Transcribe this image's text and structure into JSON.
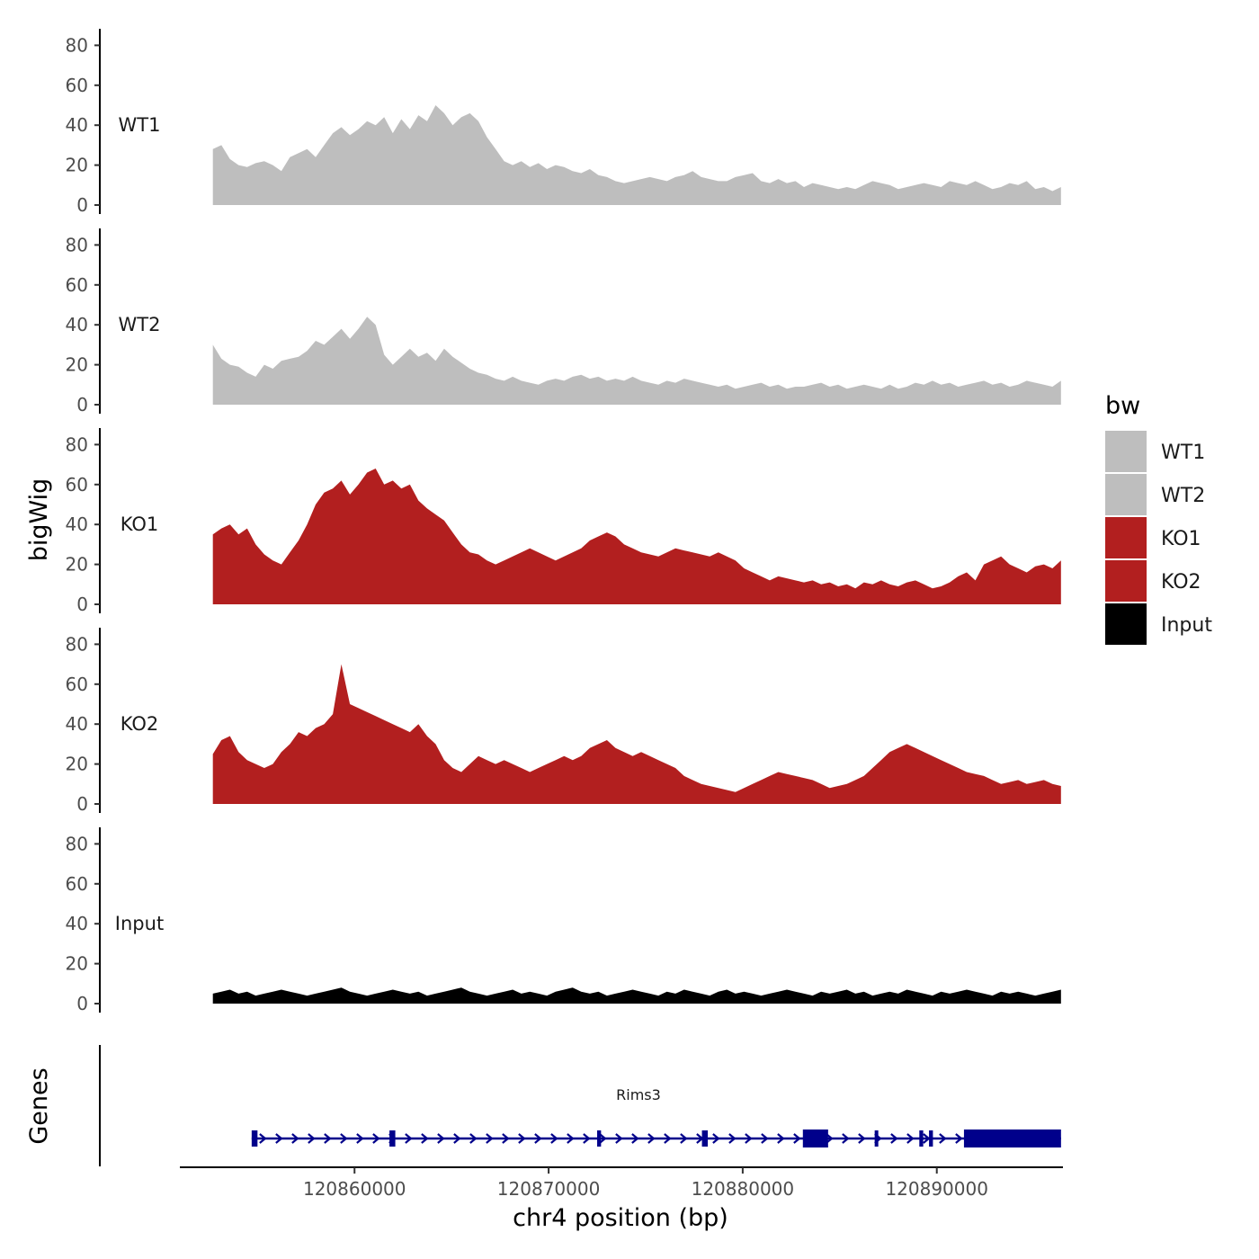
{
  "chart_data": {
    "type": "area",
    "ylabel": "bigWig",
    "xlabel": "chr4 position (bp)",
    "genes_label": "Genes",
    "xlim": [
      120851000,
      120896500
    ],
    "x_ticks": [
      120860000,
      120870000,
      120880000,
      120890000
    ],
    "x_tick_labels": [
      "120860000",
      "120870000",
      "120880000",
      "120890000"
    ],
    "ylim": [
      0,
      88
    ],
    "y_ticks": [
      0,
      20,
      40,
      60,
      80
    ],
    "y_tick_labels": [
      "0",
      "20",
      "40",
      "60",
      "80"
    ],
    "legend": {
      "title": "bw",
      "position": "right",
      "entries": [
        {
          "label": "WT1",
          "color": "#bebebe"
        },
        {
          "label": "WT2",
          "color": "#bebebe"
        },
        {
          "label": "KO1",
          "color": "#b21f1f"
        },
        {
          "label": "KO2",
          "color": "#b21f1f"
        },
        {
          "label": "Input",
          "color": "#000000"
        }
      ]
    },
    "track_x_range": [
      120852700,
      120896400
    ],
    "series": [
      {
        "name": "WT1",
        "color": "#bebebe",
        "values": [
          28,
          30,
          23,
          20,
          19,
          21,
          22,
          20,
          17,
          24,
          26,
          28,
          24,
          30,
          36,
          39,
          35,
          38,
          42,
          40,
          44,
          36,
          43,
          38,
          45,
          42,
          50,
          46,
          40,
          44,
          46,
          42,
          34,
          28,
          22,
          20,
          22,
          19,
          21,
          18,
          20,
          19,
          17,
          16,
          18,
          15,
          14,
          12,
          11,
          12,
          13,
          14,
          13,
          12,
          14,
          15,
          17,
          14,
          13,
          12,
          12,
          14,
          15,
          16,
          12,
          11,
          13,
          11,
          12,
          9,
          11,
          10,
          9,
          8,
          9,
          8,
          10,
          12,
          11,
          10,
          8,
          9,
          10,
          11,
          10,
          9,
          12,
          11,
          10,
          12,
          10,
          8,
          9,
          11,
          10,
          12,
          8,
          9,
          7,
          9
        ]
      },
      {
        "name": "WT2",
        "color": "#bebebe",
        "values": [
          30,
          23,
          20,
          19,
          16,
          14,
          20,
          18,
          22,
          23,
          24,
          27,
          32,
          30,
          34,
          38,
          33,
          38,
          44,
          40,
          25,
          20,
          24,
          28,
          24,
          26,
          22,
          28,
          24,
          21,
          18,
          16,
          15,
          13,
          12,
          14,
          12,
          11,
          10,
          12,
          13,
          12,
          14,
          15,
          13,
          14,
          12,
          13,
          12,
          14,
          12,
          11,
          10,
          12,
          11,
          13,
          12,
          11,
          10,
          9,
          10,
          8,
          9,
          10,
          11,
          9,
          10,
          8,
          9,
          9,
          10,
          11,
          9,
          10,
          8,
          9,
          10,
          9,
          8,
          10,
          8,
          9,
          11,
          10,
          12,
          10,
          11,
          9,
          10,
          11,
          12,
          10,
          11,
          9,
          10,
          12,
          11,
          10,
          9,
          12
        ]
      },
      {
        "name": "KO1",
        "color": "#b21f1f",
        "values": [
          35,
          38,
          40,
          35,
          38,
          30,
          25,
          22,
          20,
          26,
          32,
          40,
          50,
          56,
          58,
          62,
          55,
          60,
          66,
          68,
          60,
          62,
          58,
          60,
          52,
          48,
          45,
          42,
          36,
          30,
          26,
          25,
          22,
          20,
          22,
          24,
          26,
          28,
          26,
          24,
          22,
          24,
          26,
          28,
          32,
          34,
          36,
          34,
          30,
          28,
          26,
          25,
          24,
          26,
          28,
          27,
          26,
          25,
          24,
          26,
          24,
          22,
          18,
          16,
          14,
          12,
          14,
          13,
          12,
          11,
          12,
          10,
          11,
          9,
          10,
          8,
          11,
          10,
          12,
          10,
          9,
          11,
          12,
          10,
          8,
          9,
          11,
          14,
          16,
          12,
          20,
          22,
          24,
          20,
          18,
          16,
          19,
          20,
          18,
          22
        ]
      },
      {
        "name": "KO2",
        "color": "#b21f1f",
        "values": [
          25,
          32,
          34,
          26,
          22,
          20,
          18,
          20,
          26,
          30,
          36,
          34,
          38,
          40,
          45,
          70,
          50,
          48,
          46,
          44,
          42,
          40,
          38,
          36,
          40,
          34,
          30,
          22,
          18,
          16,
          20,
          24,
          22,
          20,
          22,
          20,
          18,
          16,
          18,
          20,
          22,
          24,
          22,
          24,
          28,
          30,
          32,
          28,
          26,
          24,
          26,
          24,
          22,
          20,
          18,
          14,
          12,
          10,
          9,
          8,
          7,
          6,
          8,
          10,
          12,
          14,
          16,
          15,
          14,
          13,
          12,
          10,
          8,
          9,
          10,
          12,
          14,
          18,
          22,
          26,
          28,
          30,
          28,
          26,
          24,
          22,
          20,
          18,
          16,
          15,
          14,
          12,
          10,
          11,
          12,
          10,
          11,
          12,
          10,
          9
        ]
      },
      {
        "name": "Input",
        "color": "#000000",
        "values": [
          5,
          6,
          7,
          5,
          6,
          4,
          5,
          6,
          7,
          6,
          5,
          4,
          5,
          6,
          7,
          8,
          6,
          5,
          4,
          5,
          6,
          7,
          6,
          5,
          6,
          4,
          5,
          6,
          7,
          8,
          6,
          5,
          4,
          5,
          6,
          7,
          5,
          6,
          5,
          4,
          6,
          7,
          8,
          6,
          5,
          6,
          4,
          5,
          6,
          7,
          6,
          5,
          4,
          6,
          5,
          7,
          6,
          5,
          4,
          6,
          7,
          5,
          6,
          5,
          4,
          5,
          6,
          7,
          6,
          5,
          4,
          6,
          5,
          6,
          7,
          5,
          6,
          4,
          5,
          6,
          5,
          7,
          6,
          5,
          4,
          6,
          5,
          6,
          7,
          6,
          5,
          4,
          6,
          5,
          6,
          5,
          4,
          5,
          6,
          7
        ]
      }
    ],
    "gene": {
      "name": "Rims3",
      "strand": "+",
      "color": "#00008b",
      "start": 120854700,
      "end": 120896400,
      "exons": [
        {
          "start": 120854700,
          "end": 120855000,
          "type": "exon"
        },
        {
          "start": 120861800,
          "end": 120862100,
          "type": "exon"
        },
        {
          "start": 120872500,
          "end": 120872700,
          "type": "exon"
        },
        {
          "start": 120877900,
          "end": 120878200,
          "type": "exon"
        },
        {
          "start": 120883100,
          "end": 120884400,
          "type": "utr"
        },
        {
          "start": 120886800,
          "end": 120886900,
          "type": "exon"
        },
        {
          "start": 120889100,
          "end": 120889300,
          "type": "exon"
        },
        {
          "start": 120889600,
          "end": 120889800,
          "type": "exon"
        },
        {
          "start": 120891400,
          "end": 120896400,
          "type": "utr"
        }
      ]
    }
  }
}
